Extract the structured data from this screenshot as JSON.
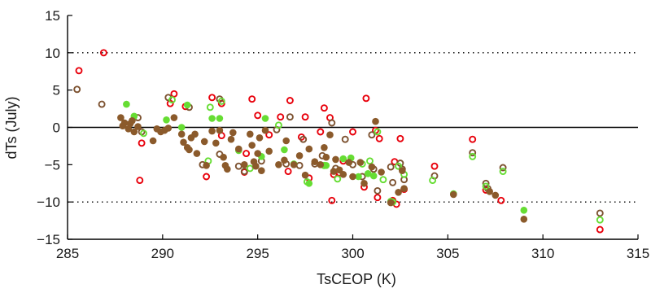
{
  "chart_data": {
    "type": "scatter",
    "title": "",
    "xlabel": "TsCEOP (K)",
    "ylabel": "dTs (July)",
    "xlim": [
      285,
      315
    ],
    "ylim": [
      -15,
      15
    ],
    "xticks": [
      285,
      290,
      295,
      300,
      305,
      310,
      315
    ],
    "yticks": [
      -15,
      -10,
      -5,
      0,
      5,
      10,
      15
    ],
    "reference_lines": [
      {
        "y": 10,
        "style": "dotted"
      },
      {
        "y": 0,
        "style": "solid"
      },
      {
        "y": -10,
        "style": "dotted"
      }
    ],
    "grid": false,
    "legend": "none",
    "series": [
      {
        "color": "#e8000b",
        "marker": "open-circle",
        "points": [
          [
            285.6,
            7.6
          ],
          [
            286.9,
            10.0
          ],
          [
            288.8,
            -7.1
          ],
          [
            288.9,
            -2.1
          ],
          [
            290.4,
            3.2
          ],
          [
            290.6,
            4.5
          ],
          [
            291.2,
            2.8
          ],
          [
            292.3,
            -6.6
          ],
          [
            292.6,
            4.0
          ],
          [
            293.1,
            3.2
          ],
          [
            293.1,
            -1.1
          ],
          [
            294.3,
            -6.0
          ],
          [
            294.4,
            -3.5
          ],
          [
            294.7,
            3.8
          ],
          [
            295.0,
            1.6
          ],
          [
            295.6,
            -1.0
          ],
          [
            296.2,
            1.4
          ],
          [
            296.6,
            -5.9
          ],
          [
            296.7,
            3.6
          ],
          [
            297.3,
            -1.3
          ],
          [
            297.5,
            1.4
          ],
          [
            297.7,
            -6.8
          ],
          [
            298.3,
            -0.6
          ],
          [
            298.5,
            2.6
          ],
          [
            298.8,
            1.3
          ],
          [
            298.9,
            -9.8
          ],
          [
            299.0,
            -6.3
          ],
          [
            299.3,
            -6.1
          ],
          [
            299.5,
            -4.5
          ],
          [
            300.0,
            -0.6
          ],
          [
            300.6,
            -8.0
          ],
          [
            300.7,
            3.9
          ],
          [
            301.2,
            -0.4
          ],
          [
            301.3,
            -9.4
          ],
          [
            301.4,
            -1.5
          ],
          [
            302.1,
            -9.8
          ],
          [
            302.2,
            -4.6
          ],
          [
            302.3,
            -10.3
          ],
          [
            302.5,
            -1.5
          ],
          [
            302.7,
            -8.3
          ],
          [
            304.3,
            -5.2
          ],
          [
            306.3,
            -1.6
          ],
          [
            307.0,
            -8.4
          ],
          [
            307.8,
            -9.8
          ],
          [
            313.0,
            -13.7
          ]
        ]
      },
      {
        "color": "#7d5230",
        "marker": "open-circle",
        "points": [
          [
            285.5,
            5.1
          ],
          [
            286.8,
            3.1
          ],
          [
            288.7,
            1.3
          ],
          [
            288.9,
            -0.6
          ],
          [
            290.3,
            4.0
          ],
          [
            291.4,
            2.7
          ],
          [
            292.1,
            -5.0
          ],
          [
            293.0,
            3.8
          ],
          [
            293.0,
            -3.6
          ],
          [
            294.0,
            -5.2
          ],
          [
            294.3,
            -5.9
          ],
          [
            295.2,
            -4.5
          ],
          [
            296.0,
            -0.3
          ],
          [
            296.5,
            -4.9
          ],
          [
            296.7,
            1.4
          ],
          [
            297.2,
            -5.1
          ],
          [
            297.4,
            -1.6
          ],
          [
            298.0,
            -4.9
          ],
          [
            298.4,
            -3.8
          ],
          [
            298.9,
            0.6
          ],
          [
            299.1,
            -5.5
          ],
          [
            299.6,
            -1.6
          ],
          [
            300.0,
            -5.0
          ],
          [
            300.5,
            -6.6
          ],
          [
            301.0,
            -1.0
          ],
          [
            301.1,
            -5.6
          ],
          [
            301.3,
            -8.5
          ],
          [
            302.0,
            -5.3
          ],
          [
            302.1,
            -7.4
          ],
          [
            302.5,
            -4.8
          ],
          [
            302.6,
            -5.6
          ],
          [
            302.7,
            -7.0
          ],
          [
            304.3,
            -6.5
          ],
          [
            306.3,
            -3.4
          ],
          [
            307.0,
            -7.5
          ],
          [
            307.1,
            -8.2
          ],
          [
            307.9,
            -5.4
          ],
          [
            313.0,
            -11.5
          ]
        ]
      },
      {
        "color": "#66dd33",
        "marker": "open-circle",
        "points": [
          [
            289.0,
            -0.8
          ],
          [
            290.5,
            3.7
          ],
          [
            292.4,
            -4.5
          ],
          [
            292.5,
            2.7
          ],
          [
            293.1,
            3.5
          ],
          [
            294.6,
            -5.5
          ],
          [
            296.1,
            0.3
          ],
          [
            297.6,
            -7.3
          ],
          [
            298.5,
            -5.1
          ],
          [
            299.2,
            -6.9
          ],
          [
            300.5,
            -4.9
          ],
          [
            300.9,
            -4.5
          ],
          [
            301.3,
            -0.6
          ],
          [
            301.6,
            -7.0
          ],
          [
            302.1,
            -10.0
          ],
          [
            302.4,
            -5.2
          ],
          [
            302.7,
            -6.3
          ],
          [
            304.2,
            -7.1
          ],
          [
            306.3,
            -3.9
          ],
          [
            307.0,
            -7.9
          ],
          [
            307.9,
            -5.9
          ],
          [
            313.0,
            -12.4
          ]
        ]
      },
      {
        "color": "#66dd33",
        "marker": "filled-circle",
        "points": [
          [
            288.1,
            3.1
          ],
          [
            288.5,
            1.5
          ],
          [
            290.2,
            1.0
          ],
          [
            291.0,
            0.0
          ],
          [
            291.3,
            3.0
          ],
          [
            292.6,
            1.2
          ],
          [
            293.0,
            1.2
          ],
          [
            294.0,
            -3.1
          ],
          [
            295.2,
            -3.9
          ],
          [
            295.4,
            1.2
          ],
          [
            296.4,
            -3.0
          ],
          [
            296.9,
            -4.9
          ],
          [
            297.7,
            -7.5
          ],
          [
            298.6,
            -5.1
          ],
          [
            299.5,
            -4.2
          ],
          [
            299.9,
            -4.1
          ],
          [
            300.3,
            -6.6
          ],
          [
            300.8,
            -6.2
          ],
          [
            301.1,
            -6.5
          ],
          [
            302.0,
            -9.9
          ],
          [
            305.3,
            -8.9
          ],
          [
            309.0,
            -11.1
          ]
        ]
      },
      {
        "color": "#8b5a2b",
        "marker": "filled-circle",
        "points": [
          [
            287.8,
            1.3
          ],
          [
            287.9,
            0.2
          ],
          [
            288.0,
            0.6
          ],
          [
            288.2,
            -0.2
          ],
          [
            288.3,
            0.5
          ],
          [
            288.4,
            0.9
          ],
          [
            288.5,
            -0.6
          ],
          [
            288.7,
            0.1
          ],
          [
            289.5,
            -1.8
          ],
          [
            289.7,
            -0.2
          ],
          [
            289.9,
            -0.6
          ],
          [
            290.1,
            -0.4
          ],
          [
            290.3,
            -0.1
          ],
          [
            290.6,
            1.3
          ],
          [
            291.0,
            -0.9
          ],
          [
            291.1,
            -2.0
          ],
          [
            291.3,
            -2.7
          ],
          [
            291.4,
            -3.0
          ],
          [
            291.5,
            -1.4
          ],
          [
            291.7,
            -0.9
          ],
          [
            291.8,
            -3.5
          ],
          [
            292.2,
            -1.9
          ],
          [
            292.3,
            -5.1
          ],
          [
            292.6,
            -0.5
          ],
          [
            292.8,
            -2.1
          ],
          [
            293.0,
            -0.4
          ],
          [
            293.2,
            -4.0
          ],
          [
            293.3,
            -5.1
          ],
          [
            293.4,
            -5.6
          ],
          [
            293.6,
            -1.6
          ],
          [
            293.7,
            -0.7
          ],
          [
            294.0,
            -2.9
          ],
          [
            294.3,
            -5.0
          ],
          [
            294.6,
            -0.9
          ],
          [
            294.7,
            -2.4
          ],
          [
            294.8,
            -4.6
          ],
          [
            294.9,
            -5.2
          ],
          [
            295.0,
            -3.5
          ],
          [
            295.1,
            -1.4
          ],
          [
            295.2,
            -5.8
          ],
          [
            295.4,
            -0.4
          ],
          [
            295.6,
            -3.2
          ],
          [
            296.1,
            -5.0
          ],
          [
            296.4,
            -4.4
          ],
          [
            296.5,
            -1.8
          ],
          [
            296.9,
            -5.0
          ],
          [
            297.2,
            -3.8
          ],
          [
            297.5,
            -6.4
          ],
          [
            297.7,
            -2.9
          ],
          [
            298.0,
            -4.6
          ],
          [
            298.3,
            -5.0
          ],
          [
            298.5,
            -2.7
          ],
          [
            298.6,
            -4.0
          ],
          [
            298.8,
            -1.0
          ],
          [
            299.0,
            -5.9
          ],
          [
            299.1,
            -4.3
          ],
          [
            299.3,
            -5.7
          ],
          [
            299.5,
            -6.3
          ],
          [
            299.8,
            -4.7
          ],
          [
            300.0,
            -6.6
          ],
          [
            300.4,
            -4.7
          ],
          [
            300.6,
            -7.5
          ],
          [
            301.0,
            -5.3
          ],
          [
            301.2,
            0.8
          ],
          [
            301.5,
            -6.0
          ],
          [
            302.0,
            -10.1
          ],
          [
            302.4,
            -8.7
          ],
          [
            302.6,
            -5.8
          ],
          [
            302.7,
            -8.2
          ],
          [
            305.3,
            -9.0
          ],
          [
            307.2,
            -8.6
          ],
          [
            307.5,
            -9.1
          ],
          [
            309.0,
            -12.3
          ]
        ]
      }
    ]
  }
}
